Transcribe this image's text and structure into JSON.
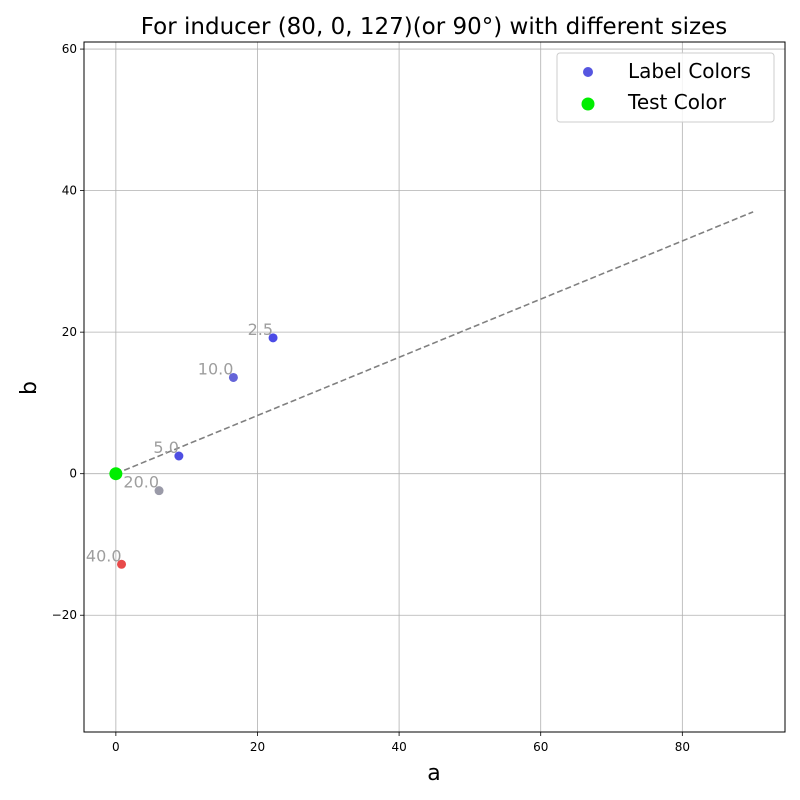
{
  "chart_data": {
    "type": "scatter",
    "title": "For inducer (80, 0, 127)(or 90°) with different sizes",
    "xlabel": "a",
    "ylabel": "b",
    "xlim": [
      -4.5,
      94.5
    ],
    "ylim": [
      -36.5,
      61
    ],
    "xticks": [
      0,
      20,
      40,
      60,
      80
    ],
    "yticks": [
      -20,
      0,
      20,
      40,
      60
    ],
    "xtick_labels": [
      "0",
      "20",
      "40",
      "60",
      "80"
    ],
    "ytick_labels": [
      "−20",
      "0",
      "20",
      "40",
      "60"
    ],
    "grid": true,
    "legend": {
      "placement": "top-right",
      "entries": [
        {
          "label": "Label Colors",
          "color": "#5656e0"
        },
        {
          "label": "Test Color",
          "color": "#00ee00"
        }
      ]
    },
    "series": [
      {
        "name": "Label Colors",
        "points": [
          {
            "label": "2.5",
            "x": 22.2,
            "y": 19.2,
            "color": "#4b4be6"
          },
          {
            "label": "10.0",
            "x": 16.6,
            "y": 13.6,
            "color": "#6464d8"
          },
          {
            "label": "5.0",
            "x": 8.9,
            "y": 2.5,
            "color": "#4e4ee2"
          },
          {
            "label": "20.0",
            "x": 6.1,
            "y": -2.4,
            "color": "#9a9aa8"
          },
          {
            "label": "40.0",
            "x": 0.8,
            "y": -12.8,
            "color": "#e84a4a"
          }
        ]
      },
      {
        "name": "Test Color",
        "points": [
          {
            "x": 0,
            "y": 0,
            "color": "#00ee00"
          }
        ]
      }
    ],
    "reference_line": {
      "style": "dashed",
      "color": "#808080",
      "from": {
        "x": 0,
        "y": 0
      },
      "to": {
        "x": 90,
        "y": 37
      }
    }
  }
}
